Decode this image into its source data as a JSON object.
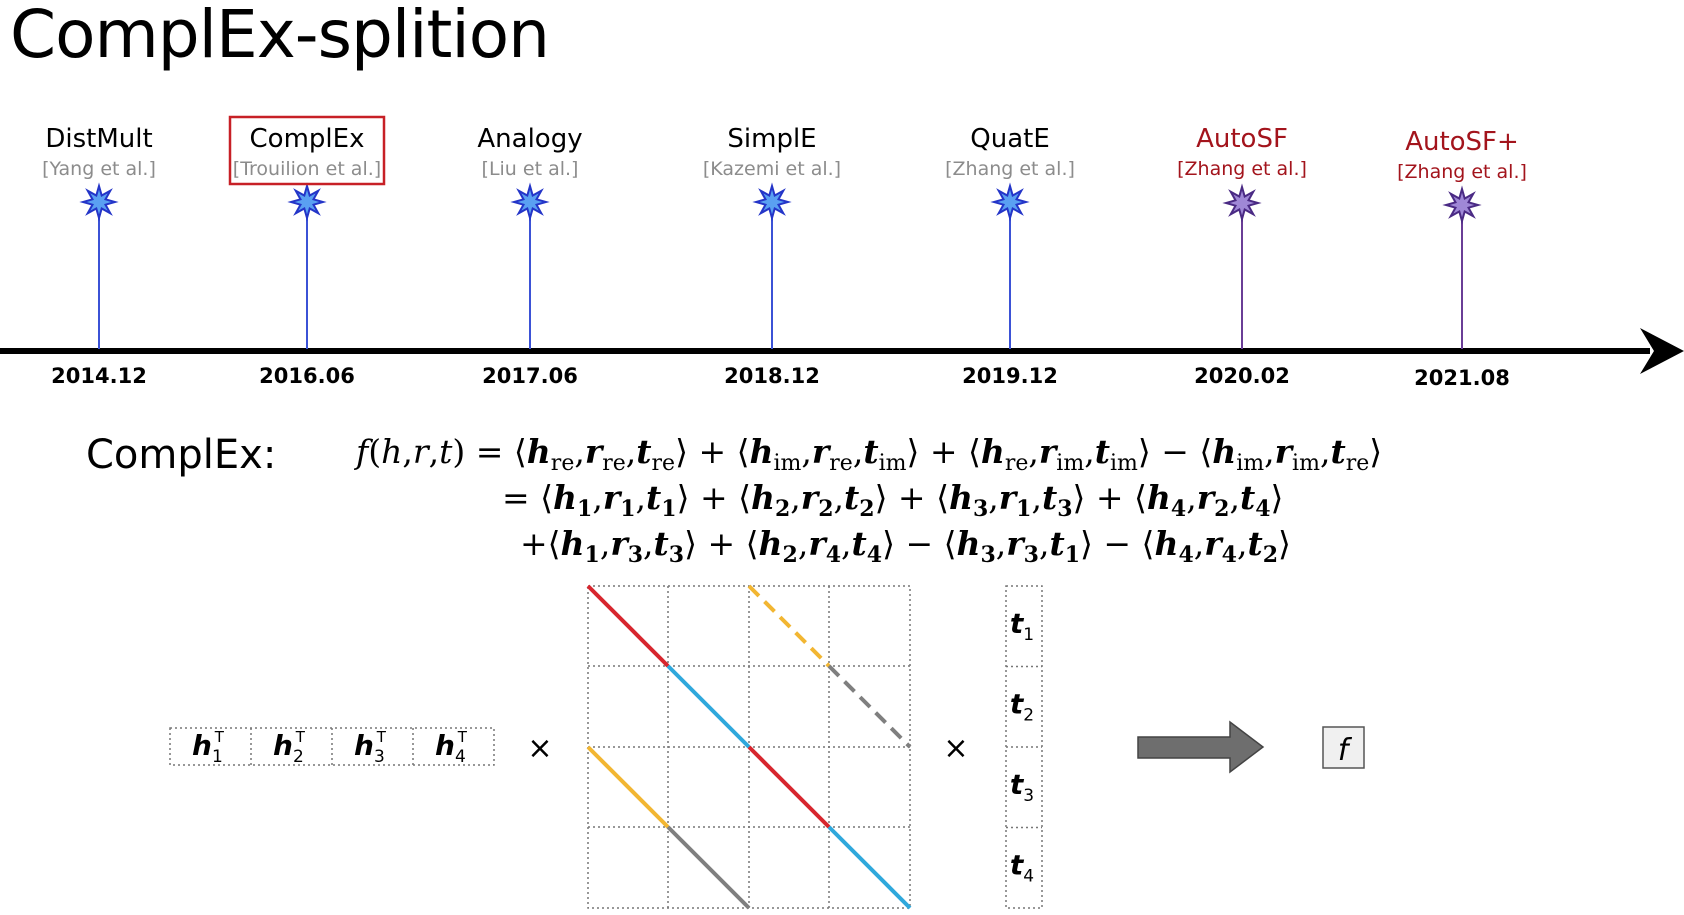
{
  "title": "ComplEx-splition",
  "timeline": [
    {
      "model": "DistMult",
      "cite": "[Yang et al.]",
      "date": "2014.12",
      "highlight": false,
      "color": "#000000",
      "cite_color": "#8c8c8c"
    },
    {
      "model": "ComplEx",
      "cite": "[Trouilion et al.]",
      "date": "2016.06",
      "highlight": true,
      "color": "#000000",
      "cite_color": "#8c8c8c"
    },
    {
      "model": "Analogy",
      "cite": "[Liu et al.]",
      "date": "2017.06",
      "highlight": false,
      "color": "#000000",
      "cite_color": "#8c8c8c"
    },
    {
      "model": "SimplE",
      "cite": "[Kazemi et al.]",
      "date": "2018.12",
      "highlight": false,
      "color": "#000000",
      "cite_color": "#8c8c8c"
    },
    {
      "model": "QuatE",
      "cite": "[Zhang et al.]",
      "date": "2019.12",
      "highlight": false,
      "color": "#000000",
      "cite_color": "#8c8c8c"
    },
    {
      "model": "AutoSF",
      "cite": "[Zhang et al.]",
      "date": "2020.02",
      "highlight": false,
      "color": "#a3141c",
      "cite_color": "#a3141c"
    },
    {
      "model": "AutoSF+",
      "cite": "[Zhang et al.]",
      "date": "2021.08",
      "highlight": false,
      "color": "#a3141c",
      "cite_color": "#a3141c"
    }
  ],
  "formula_label": "ComplEx:",
  "diagram": {
    "h_cells": [
      "h1",
      "h2",
      "h3",
      "h4"
    ],
    "t_cells": [
      "t1",
      "t2",
      "t3",
      "t4"
    ],
    "times_symbol": "×",
    "result": "f",
    "line_colors": {
      "red": "#d7262e",
      "blue": "#2fa8dc",
      "yellow": "#f2b632",
      "gray": "#7f7f7f"
    }
  }
}
